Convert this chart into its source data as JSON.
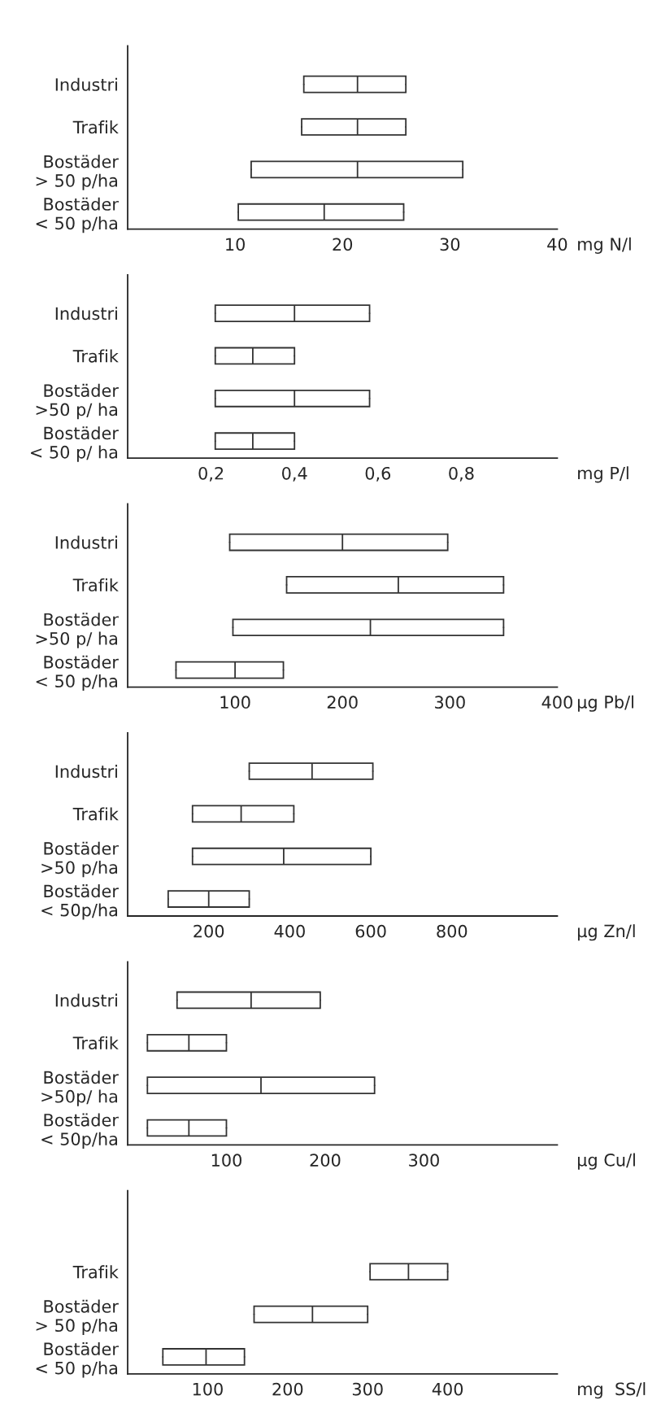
{
  "chart_data": [
    {
      "type": "box",
      "orientation": "horizontal",
      "color": "#333333",
      "xlabel": "mg N/l",
      "categories": [
        "Industri",
        "Trafik",
        "Bostäder\n> 50 p/ha",
        "Bostäder\n< 50 p/ha"
      ],
      "boxes": [
        {
          "low": 16.4,
          "q1": 16.4,
          "median": 21.4,
          "q3": 25.9,
          "high": 25.9
        },
        {
          "low": 16.2,
          "q1": 16.2,
          "median": 21.4,
          "q3": 25.9,
          "high": 25.9
        },
        {
          "low": 11.5,
          "q1": 11.5,
          "median": 21.4,
          "q3": 31.2,
          "high": 31.2
        },
        {
          "low": 10.3,
          "q1": 10.3,
          "median": 18.3,
          "q3": 25.7,
          "high": 25.7
        }
      ],
      "xlim": [
        0,
        40
      ],
      "xticks": [
        10,
        20,
        30,
        40
      ]
    },
    {
      "type": "box",
      "orientation": "horizontal",
      "color": "#333333",
      "xlabel": "mg P/l",
      "categories": [
        "Industri",
        "Trafik",
        "Bostäder\n>50 p/ ha",
        "Bostäder\n< 50 p/ ha"
      ],
      "boxes": [
        {
          "low": 0.21,
          "q1": 0.21,
          "median": 0.4,
          "q3": 0.58,
          "high": 0.58
        },
        {
          "low": 0.21,
          "q1": 0.21,
          "median": 0.3,
          "q3": 0.4,
          "high": 0.4
        },
        {
          "low": 0.21,
          "q1": 0.21,
          "median": 0.4,
          "q3": 0.58,
          "high": 0.58
        },
        {
          "low": 0.21,
          "q1": 0.21,
          "median": 0.3,
          "q3": 0.4,
          "high": 0.4
        }
      ],
      "xlim": [
        0,
        1.03
      ],
      "xticks": [
        {
          "value": 0.2,
          "label": "0,2"
        },
        {
          "value": 0.4,
          "label": "0,4"
        },
        {
          "value": 0.6,
          "label": "0,6"
        },
        {
          "value": 0.8,
          "label": "0,8"
        }
      ]
    },
    {
      "type": "box",
      "orientation": "horizontal",
      "color": "#333333",
      "xlabel": "µg Pb/l",
      "categories": [
        "Industri",
        "Trafik",
        "Bostäder\n>50 p/ ha",
        "Bostäder\n< 50 p/ha"
      ],
      "boxes": [
        {
          "low": 95,
          "q1": 95,
          "median": 200,
          "q3": 298,
          "high": 298
        },
        {
          "low": 148,
          "q1": 148,
          "median": 252,
          "q3": 350,
          "high": 350
        },
        {
          "low": 98,
          "q1": 98,
          "median": 226,
          "q3": 350,
          "high": 350
        },
        {
          "low": 45,
          "q1": 45,
          "median": 100,
          "q3": 145,
          "high": 145
        }
      ],
      "xlim": [
        0,
        400
      ],
      "xticks": [
        100,
        200,
        300,
        400
      ]
    },
    {
      "type": "box",
      "orientation": "horizontal",
      "color": "#333333",
      "xlabel": "µg Zn/l",
      "categories": [
        "Industri",
        "Trafik",
        "Bostäder\n>50 p/ha",
        "Bostäder\n< 50p/ha"
      ],
      "boxes": [
        {
          "low": 300,
          "q1": 300,
          "median": 455,
          "q3": 605,
          "high": 605
        },
        {
          "low": 160,
          "q1": 160,
          "median": 280,
          "q3": 410,
          "high": 410
        },
        {
          "low": 160,
          "q1": 160,
          "median": 385,
          "q3": 600,
          "high": 600
        },
        {
          "low": 100,
          "q1": 100,
          "median": 200,
          "q3": 300,
          "high": 300
        }
      ],
      "xlim": [
        0,
        1060
      ],
      "xticks": [
        200,
        400,
        600,
        800
      ]
    },
    {
      "type": "box",
      "orientation": "horizontal",
      "color": "#333333",
      "xlabel": "µg Cu/l",
      "categories": [
        "Industri",
        "Trafik",
        "Bostäder\n>50p/ ha",
        "Bostäder\n< 50p/ha"
      ],
      "boxes": [
        {
          "low": 50,
          "q1": 50,
          "median": 125,
          "q3": 195,
          "high": 195
        },
        {
          "low": 20,
          "q1": 20,
          "median": 62,
          "q3": 100,
          "high": 100
        },
        {
          "low": 20,
          "q1": 20,
          "median": 135,
          "q3": 250,
          "high": 250
        },
        {
          "low": 20,
          "q1": 20,
          "median": 62,
          "q3": 100,
          "high": 100
        }
      ],
      "xlim": [
        0,
        435
      ],
      "xticks": [
        100,
        200,
        300
      ]
    },
    {
      "type": "box",
      "orientation": "horizontal",
      "color": "#333333",
      "xlabel": "mg  SS/l",
      "categories": [
        null,
        "Trafik",
        "Bostäder\n> 50 p/ha",
        "Bostäder\n< 50 p/ha"
      ],
      "boxes": [
        null,
        {
          "low": 303,
          "q1": 303,
          "median": 351,
          "q3": 400,
          "high": 400
        },
        {
          "low": 158,
          "q1": 158,
          "median": 231,
          "q3": 300,
          "high": 300
        },
        {
          "low": 44,
          "q1": 44,
          "median": 98,
          "q3": 146,
          "high": 146
        }
      ],
      "xlim": [
        0,
        537
      ],
      "xticks": [
        100,
        200,
        300,
        400
      ]
    }
  ]
}
